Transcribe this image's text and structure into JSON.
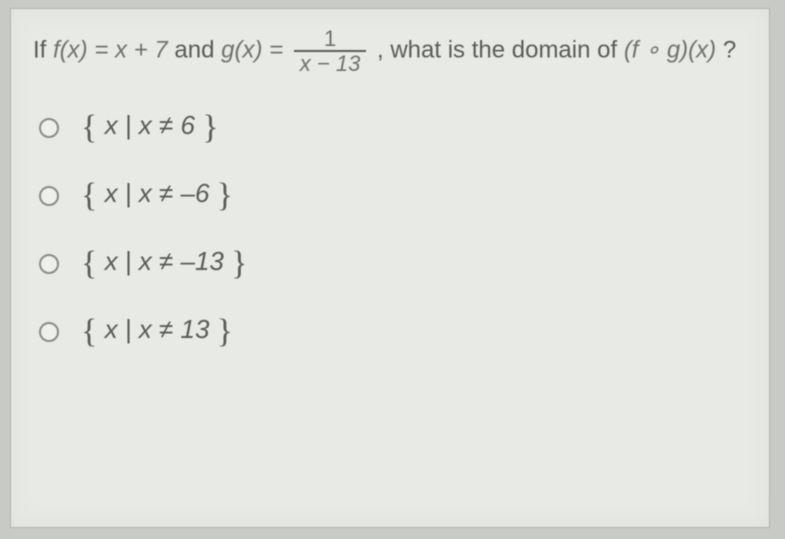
{
  "question": {
    "prefix": "If ",
    "fx_lhs": "f(x) = x + 7",
    "and": " and ",
    "gx_lhs": "g(x) = ",
    "frac_num": "1",
    "frac_den": "x − 13",
    "tail_a": ", what is the domain of ",
    "comp": "(f ∘ g)(x)",
    "tail_b": "?"
  },
  "options": [
    {
      "open": "{",
      "body": "x | x ≠ 6",
      "close": "}"
    },
    {
      "open": "{",
      "body": "x | x ≠ –6",
      "close": "}"
    },
    {
      "open": "{",
      "body": "x | x ≠ –13",
      "close": "}"
    },
    {
      "open": "{",
      "body": "x | x ≠ 13",
      "close": "}"
    }
  ],
  "colors": {
    "page_bg": "#c8cac6",
    "panel_bg": "#e8eae6",
    "text": "#5a5c58",
    "radio_border": "#8a8c88"
  }
}
